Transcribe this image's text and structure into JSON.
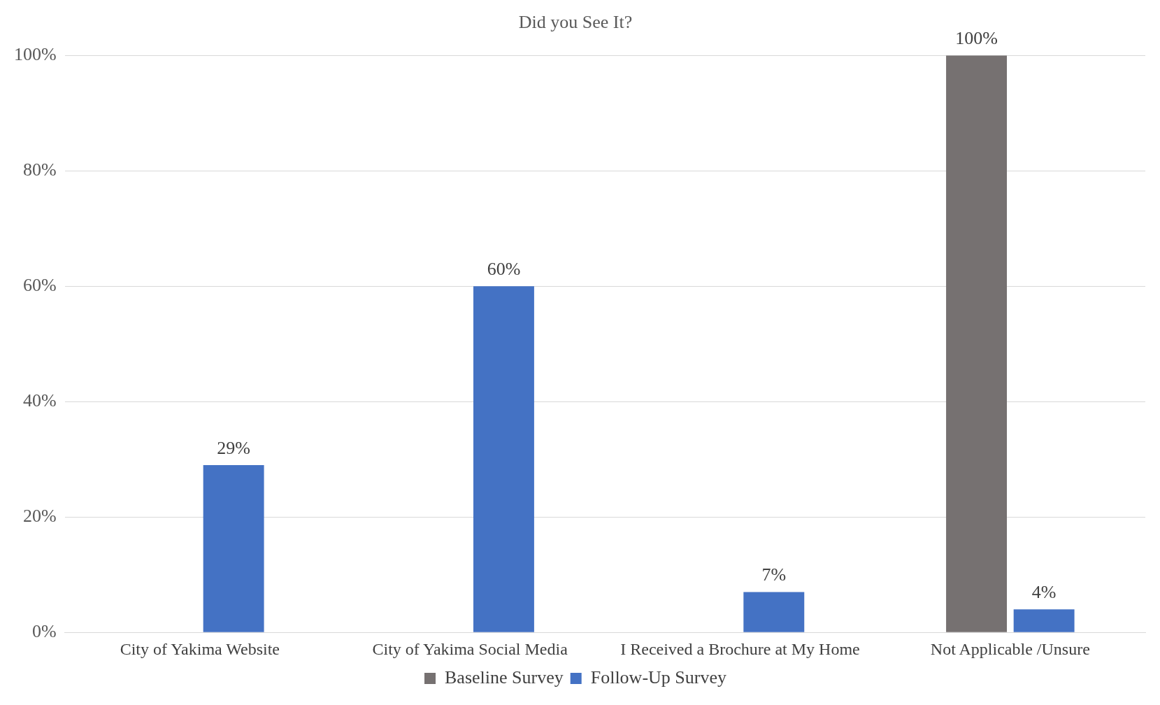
{
  "chart_data": {
    "type": "bar",
    "title": "Did you See It?",
    "categories": [
      "City of Yakima Website",
      "City of Yakima Social Media",
      "I Received a Brochure at My Home",
      "Not Applicable /Unsure"
    ],
    "series": [
      {
        "name": "Baseline Survey",
        "color": "#767171",
        "values": [
          null,
          null,
          null,
          100
        ],
        "value_labels": [
          null,
          null,
          null,
          "100%"
        ]
      },
      {
        "name": "Follow-Up Survey",
        "color": "#4472c4",
        "values": [
          29,
          60,
          7,
          4
        ],
        "value_labels": [
          "29%",
          "60%",
          "7%",
          "4%"
        ]
      }
    ],
    "ylim": [
      0,
      100
    ],
    "yticks": [
      {
        "value": 0,
        "label": "0%"
      },
      {
        "value": 20,
        "label": "20%"
      },
      {
        "value": 40,
        "label": "40%"
      },
      {
        "value": 60,
        "label": "60%"
      },
      {
        "value": 80,
        "label": "80%"
      },
      {
        "value": 100,
        "label": "100%"
      }
    ],
    "grid": "y",
    "legend": "bottom"
  }
}
